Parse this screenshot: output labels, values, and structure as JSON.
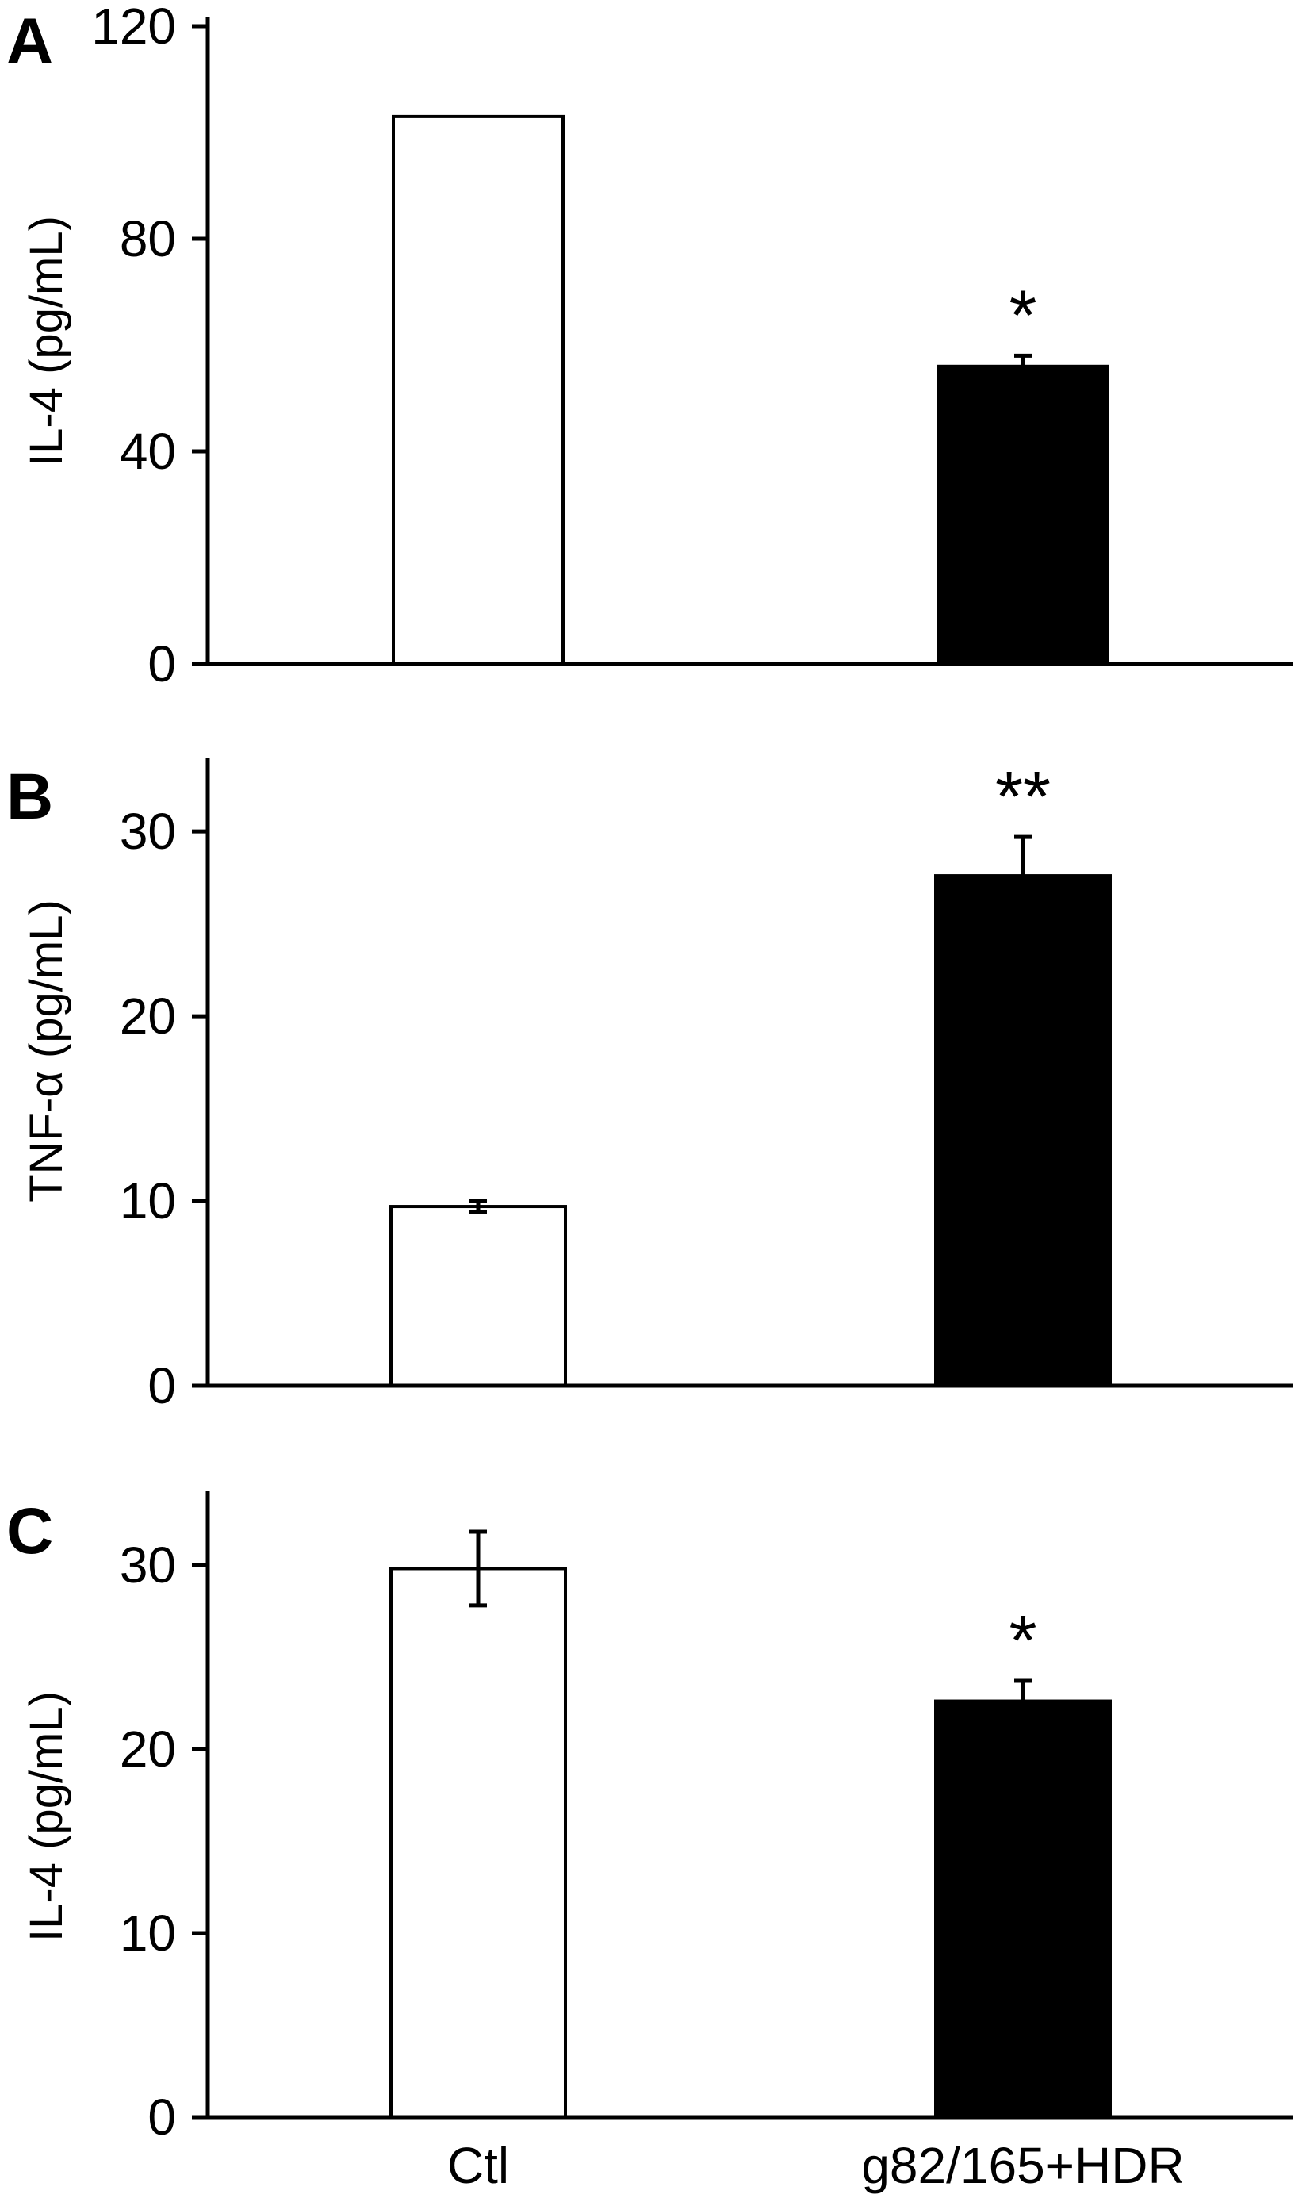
{
  "chart_data": [
    {
      "type": "bar",
      "panel": "A",
      "ylabel": "IL-4 (pg/mL)",
      "ylim": [
        0,
        120
      ],
      "yticks": [
        0,
        40,
        80,
        120
      ],
      "categories": [
        "Ctl",
        "g82/165+HDR"
      ],
      "values": [
        103,
        56
      ],
      "errors": [
        0,
        2
      ],
      "bar_fill": [
        "#ffffff",
        "#000000"
      ],
      "significance": [
        "",
        "*"
      ],
      "show_category_labels": false
    },
    {
      "type": "bar",
      "panel": "B",
      "ylabel": "TNF-α (pg/mL)",
      "ylim": [
        0,
        34
      ],
      "yticks": [
        0,
        10,
        20,
        30
      ],
      "categories": [
        "Ctl",
        "g82/165+HDR"
      ],
      "values": [
        9.7,
        27.6
      ],
      "errors": [
        0.3,
        2.1
      ],
      "bar_fill": [
        "#ffffff",
        "#000000"
      ],
      "significance": [
        "",
        "**"
      ],
      "show_category_labels": false
    },
    {
      "type": "bar",
      "panel": "C",
      "ylabel": "IL-4 (pg/mL)",
      "ylim": [
        0,
        34
      ],
      "yticks": [
        0,
        10,
        20,
        30
      ],
      "categories": [
        "Ctl",
        "g82/165+HDR"
      ],
      "values": [
        29.8,
        22.6
      ],
      "errors": [
        2.0,
        1.1
      ],
      "bar_fill": [
        "#ffffff",
        "#000000"
      ],
      "significance": [
        "",
        "*"
      ],
      "show_category_labels": true
    }
  ]
}
